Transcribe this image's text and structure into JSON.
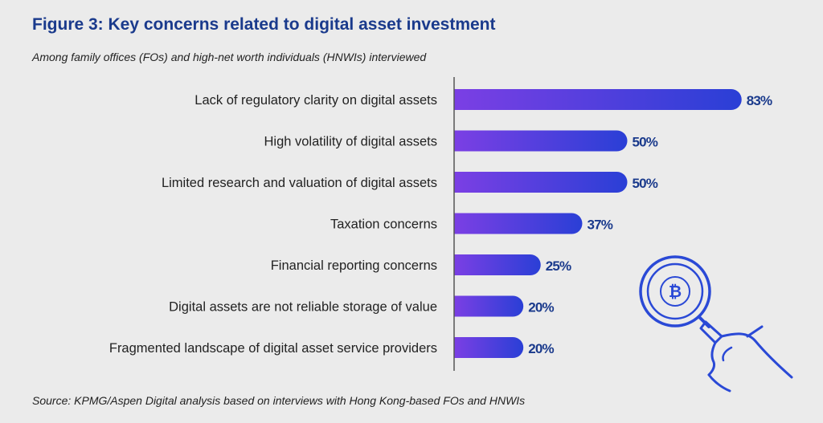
{
  "header": {
    "title": "Figure 3: Key concerns related to digital asset investment",
    "subtitle": "Among family offices (FOs) and high-net worth individuals (HNWIs) interviewed"
  },
  "footer": {
    "source": "Source: KPMG/Aspen Digital analysis based on interviews with Hong Kong-based FOs and HNWIs"
  },
  "chart_data": {
    "type": "bar",
    "orientation": "horizontal",
    "categories": [
      "Lack of regulatory clarity on digital assets",
      "High volatility of digital assets",
      "Limited research and valuation of digital assets",
      "Taxation concerns",
      "Financial reporting concerns",
      "Digital assets are not reliable storage of value",
      "Fragmented landscape of digital asset service providers"
    ],
    "values": [
      83,
      50,
      50,
      37,
      25,
      20,
      20
    ],
    "value_labels": [
      "83%",
      "50%",
      "50%",
      "37%",
      "25%",
      "20%",
      "20%"
    ],
    "unit": "%",
    "xlim": [
      0,
      100
    ],
    "grid": false,
    "colors": {
      "bar_start": "#7b3fe4",
      "bar_end": "#2a3fd6",
      "value_text": "#1a3a8c",
      "axis": "#555555"
    }
  },
  "decoration": {
    "icon": "magnifier-bitcoin-icon",
    "icon_color": "#2a49d6"
  }
}
